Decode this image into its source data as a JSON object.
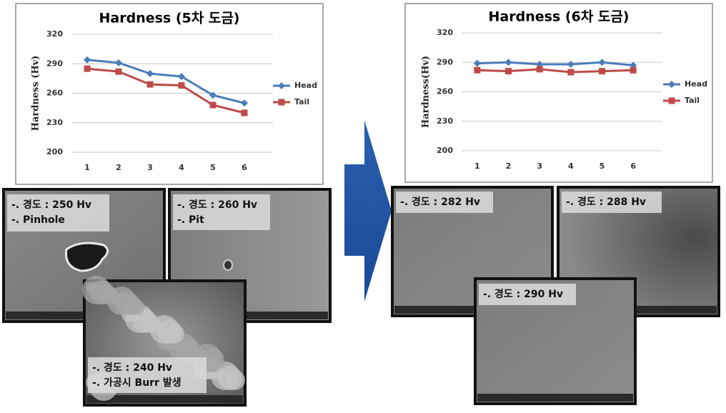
{
  "chart_data": [
    {
      "type": "line",
      "title": "Hardness (5차 도금)",
      "y_label": "Hardness (Hv)",
      "categories": [
        "1",
        "2",
        "3",
        "4",
        "5",
        "6"
      ],
      "series": [
        {
          "name": "Head",
          "color": "#4a7ebb",
          "marker": "diamond",
          "values": [
            294,
            291,
            280,
            277,
            258,
            250
          ]
        },
        {
          "name": "Tail",
          "color": "#be4b48",
          "marker": "square",
          "values": [
            285,
            282,
            269,
            268,
            248,
            240
          ]
        }
      ],
      "ylim": [
        200,
        320
      ],
      "yticks": [
        200,
        230,
        260,
        290,
        320
      ],
      "grid": true,
      "legend": "right"
    },
    {
      "type": "line",
      "title": "Hardness (6차 도금)",
      "y_label": "Hardness(Hv)",
      "categories": [
        "1",
        "2",
        "3",
        "4",
        "5",
        "6"
      ],
      "series": [
        {
          "name": "Head",
          "color": "#4a7ebb",
          "marker": "diamond",
          "values": [
            289,
            290,
            288,
            288,
            290,
            287
          ]
        },
        {
          "name": "Tail",
          "color": "#be4b48",
          "marker": "square",
          "values": [
            282,
            281,
            283,
            280,
            281,
            282
          ]
        }
      ],
      "ylim": [
        200,
        320
      ],
      "yticks": [
        200,
        230,
        260,
        290,
        320
      ],
      "grid": true,
      "legend": "right"
    }
  ],
  "images": [
    {
      "caption": [
        "-. 경도 : 250 Hv",
        "-. Pinhole"
      ]
    },
    {
      "caption": [
        "-. 경도 : 260 Hv",
        "-. Pit"
      ]
    },
    {
      "caption": [
        "-. 경도 : 240 Hv",
        "-. 가공시 Burr 발생"
      ]
    },
    {
      "caption": [
        "-. 경도 : 282 Hv"
      ]
    },
    {
      "caption": [
        "-. 경도 : 288 Hv"
      ]
    },
    {
      "caption": [
        "-. 경도 : 290 Hv"
      ]
    }
  ]
}
